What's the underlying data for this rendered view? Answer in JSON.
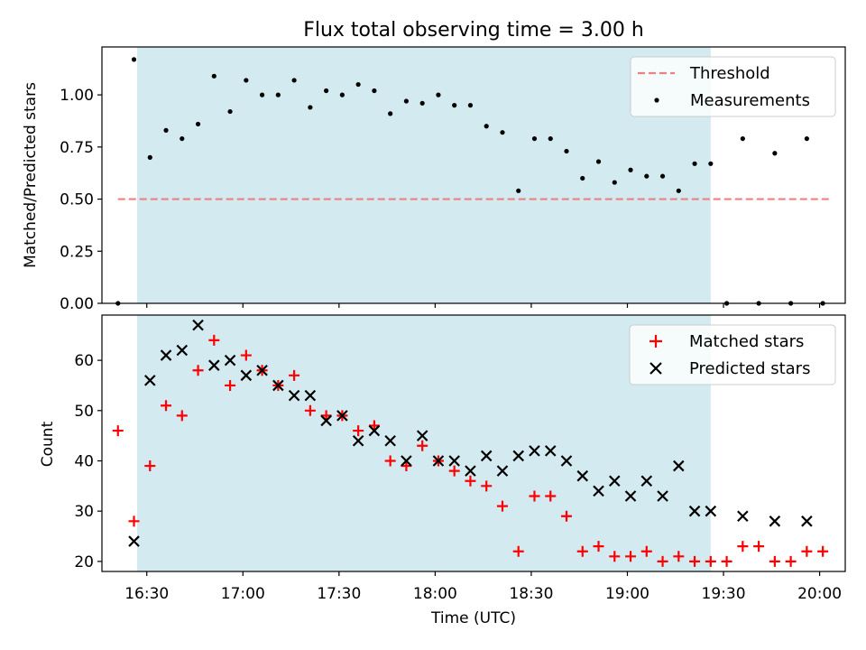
{
  "chart_data": [
    {
      "type": "scatter",
      "title": "Flux total observing time = 3.00 h",
      "xlabel": "",
      "ylabel": "Matched/Predicted stars",
      "ylim": [
        0,
        1.23
      ],
      "yticks": [
        "0.00",
        "0.25",
        "0.50",
        "0.75",
        "1.00"
      ],
      "xlim": [
        "16:16",
        "20:08"
      ],
      "shaded_span": [
        "16:27",
        "19:26"
      ],
      "shaded_color": "#d3eaf0",
      "legend_position": "upper right",
      "threshold": {
        "name": "Threshold",
        "y": 0.5,
        "x_range": [
          "16:21",
          "20:03"
        ],
        "color": "#f08080",
        "style": "dashed"
      },
      "series": [
        {
          "name": "Measurements",
          "marker": "dot",
          "color": "#000000",
          "x": [
            "16:21",
            "16:26",
            "16:31",
            "16:36",
            "16:41",
            "16:46",
            "16:51",
            "16:56",
            "17:01",
            "17:06",
            "17:11",
            "17:16",
            "17:21",
            "17:26",
            "17:31",
            "17:36",
            "17:41",
            "17:46",
            "17:51",
            "17:56",
            "18:01",
            "18:06",
            "18:11",
            "18:16",
            "18:21",
            "18:26",
            "18:31",
            "18:36",
            "18:41",
            "18:46",
            "18:51",
            "18:56",
            "19:01",
            "19:06",
            "19:11",
            "19:16",
            "19:21",
            "19:26",
            "19:31",
            "19:36",
            "19:41",
            "19:46",
            "19:51",
            "19:56",
            "20:01"
          ],
          "y": [
            0.0,
            1.17,
            0.7,
            0.83,
            0.79,
            0.86,
            1.09,
            0.92,
            1.07,
            1.0,
            1.0,
            1.07,
            0.94,
            1.02,
            1.0,
            1.05,
            1.02,
            0.91,
            0.97,
            0.96,
            1.0,
            0.95,
            0.95,
            0.85,
            0.82,
            0.54,
            0.79,
            0.79,
            0.73,
            0.6,
            0.68,
            0.58,
            0.64,
            0.61,
            0.61,
            0.54,
            0.67,
            0.67,
            0.0,
            0.79,
            0.0,
            0.72,
            0.0,
            0.79,
            0.0
          ]
        }
      ]
    },
    {
      "type": "scatter",
      "title": "",
      "xlabel": "Time (UTC)",
      "ylabel": "Count",
      "ylim": [
        18,
        69
      ],
      "yticks": [
        "20",
        "30",
        "40",
        "50",
        "60"
      ],
      "xlim": [
        "16:16",
        "20:08"
      ],
      "xticks": [
        "16:30",
        "17:00",
        "17:30",
        "18:00",
        "18:30",
        "19:00",
        "19:30",
        "20:00"
      ],
      "shaded_span": [
        "16:27",
        "19:26"
      ],
      "shaded_color": "#d3eaf0",
      "legend_position": "upper right",
      "series": [
        {
          "name": "Matched stars",
          "marker": "plus",
          "color": "#ff0000",
          "x": [
            "16:21",
            "16:26",
            "16:31",
            "16:36",
            "16:41",
            "16:46",
            "16:51",
            "16:56",
            "17:01",
            "17:06",
            "17:11",
            "17:16",
            "17:21",
            "17:26",
            "17:31",
            "17:36",
            "17:41",
            "17:46",
            "17:51",
            "17:56",
            "18:01",
            "18:06",
            "18:11",
            "18:16",
            "18:21",
            "18:26",
            "18:31",
            "18:36",
            "18:41",
            "18:46",
            "18:51",
            "18:56",
            "19:01",
            "19:06",
            "19:11",
            "19:16",
            "19:21",
            "19:26",
            "19:31",
            "19:36",
            "19:41",
            "19:46",
            "19:51",
            "19:56",
            "20:01"
          ],
          "y": [
            46,
            28,
            39,
            51,
            49,
            58,
            64,
            55,
            61,
            58,
            55,
            57,
            50,
            49,
            49,
            46,
            47,
            40,
            39,
            43,
            40,
            38,
            36,
            35,
            31,
            22,
            33,
            33,
            29,
            22,
            23,
            21,
            21,
            22,
            20,
            21,
            20,
            20,
            20,
            23,
            23,
            20,
            20,
            22,
            22
          ]
        },
        {
          "name": "Predicted stars",
          "marker": "x",
          "color": "#000000",
          "x": [
            "16:26",
            "16:31",
            "16:36",
            "16:41",
            "16:46",
            "16:51",
            "16:56",
            "17:01",
            "17:06",
            "17:11",
            "17:16",
            "17:21",
            "17:26",
            "17:31",
            "17:36",
            "17:41",
            "17:46",
            "17:51",
            "17:56",
            "18:01",
            "18:06",
            "18:11",
            "18:16",
            "18:21",
            "18:26",
            "18:31",
            "18:36",
            "18:41",
            "18:46",
            "18:51",
            "18:56",
            "19:01",
            "19:06",
            "19:11",
            "19:16",
            "19:21",
            "19:26",
            "19:36",
            "19:46",
            "19:56"
          ],
          "y": [
            24,
            56,
            61,
            62,
            67,
            59,
            60,
            57,
            58,
            55,
            53,
            53,
            48,
            49,
            44,
            46,
            44,
            40,
            45,
            40,
            40,
            38,
            41,
            38,
            41,
            42,
            42,
            40,
            37,
            34,
            36,
            33,
            36,
            33,
            39,
            30,
            30,
            29,
            28,
            28
          ]
        }
      ]
    }
  ]
}
